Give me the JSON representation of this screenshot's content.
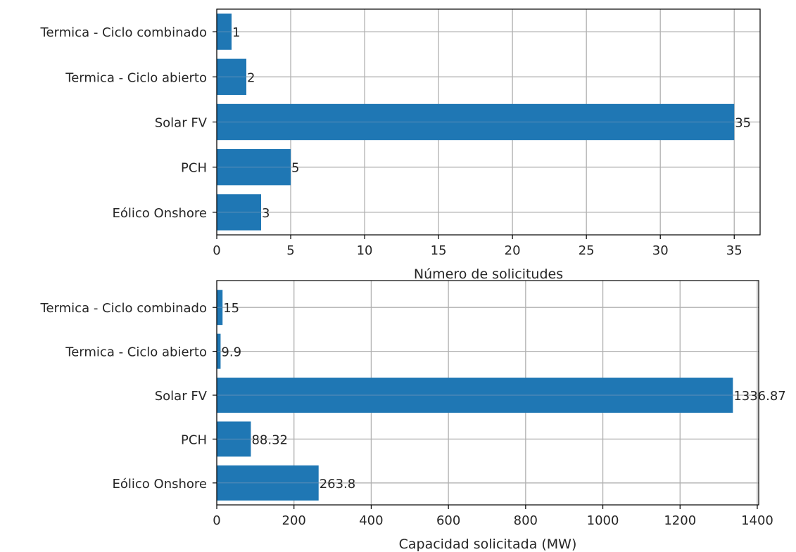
{
  "chart_data": [
    {
      "type": "bar",
      "orientation": "horizontal",
      "categories": [
        "Eólico Onshore",
        "PCH",
        "Solar FV",
        "Termica - Ciclo abierto",
        "Termica - Ciclo combinado"
      ],
      "values": [
        3,
        5,
        35,
        2,
        1
      ],
      "value_labels": [
        "3",
        "5",
        "35",
        "2",
        "1"
      ],
      "title": "",
      "xlabel": "Número de solicitudes",
      "ylabel": "",
      "xlim": [
        0,
        36.75
      ],
      "xticks": [
        0,
        5,
        10,
        15,
        20,
        25,
        30,
        35
      ],
      "xtick_labels": [
        "0",
        "5",
        "10",
        "15",
        "20",
        "25",
        "30",
        "35"
      ],
      "grid": true,
      "bar_color": "#1f77b4"
    },
    {
      "type": "bar",
      "orientation": "horizontal",
      "categories": [
        "Eólico Onshore",
        "PCH",
        "Solar FV",
        "Termica - Ciclo abierto",
        "Termica - Ciclo combinado"
      ],
      "values": [
        263.8,
        88.32,
        1336.87,
        9.9,
        15
      ],
      "value_labels": [
        "263.8",
        "88.32",
        "1336.87",
        "9.9",
        "15"
      ],
      "title": "",
      "xlabel": "Capacidad solicitada (MW)",
      "ylabel": "",
      "xlim": [
        0,
        1403.7
      ],
      "xticks": [
        0,
        200,
        400,
        600,
        800,
        1000,
        1200,
        1400
      ],
      "xtick_labels": [
        "0",
        "200",
        "400",
        "600",
        "800",
        "1000",
        "1200",
        "1400"
      ],
      "grid": true,
      "bar_color": "#1f77b4"
    }
  ]
}
